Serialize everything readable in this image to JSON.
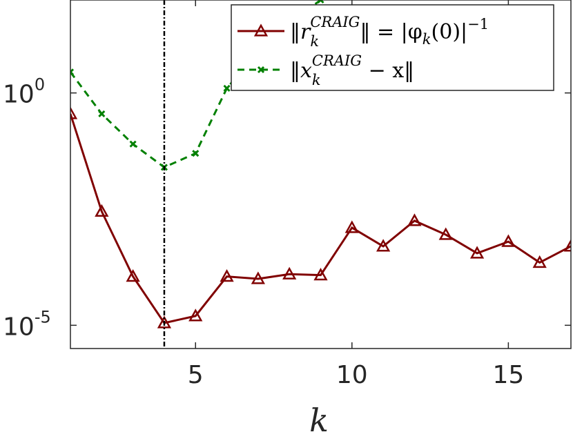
{
  "chart_data": {
    "type": "line",
    "xlabel": "k",
    "ylabel": "",
    "xlim": [
      1,
      17
    ],
    "ylim_log10": [
      -5.5,
      2
    ],
    "y_scale": "log",
    "x_ticks": [
      5,
      10,
      15
    ],
    "y_ticks": [
      {
        "base": "10",
        "exp": "0",
        "log10": 0
      },
      {
        "base": "10",
        "exp": "-5",
        "log10": -5
      }
    ],
    "vertical_line": {
      "x": 4,
      "style": "dash-dot",
      "color": "#000000"
    },
    "legend_position": "top-right",
    "series": [
      {
        "name": "‖r_k^CRAIG‖ = |φ_k(0)|⁻¹",
        "legend_parts": {
          "main": "‖r",
          "sub": "k",
          "sup": "CRAIG",
          "rest": "‖ = |φ",
          "sub2": "k",
          "rest2": "(0)|",
          "sup2": "−1"
        },
        "color": "#800000",
        "marker": "triangle",
        "line_style": "solid",
        "x": [
          1,
          2,
          3,
          4,
          5,
          6,
          7,
          8,
          9,
          10,
          11,
          12,
          13,
          14,
          15,
          16,
          17
        ],
        "log10_y": [
          -0.45,
          -2.55,
          -3.95,
          -4.95,
          -4.8,
          -3.95,
          -4.0,
          -3.9,
          -3.92,
          -2.9,
          -3.3,
          -2.75,
          -3.05,
          -3.45,
          -3.2,
          -3.65,
          -3.3
        ]
      },
      {
        "name": "‖x_k^CRAIG − x‖",
        "legend_parts": {
          "main": "‖x",
          "sub": "k",
          "sup": "CRAIG",
          "rest": " − x‖"
        },
        "color": "#008000",
        "marker": "x",
        "line_style": "dashed",
        "x": [
          1,
          2,
          3,
          4,
          5,
          6,
          7,
          8,
          9
        ],
        "log10_y": [
          0.45,
          -0.45,
          -1.1,
          -1.6,
          -1.3,
          0.1,
          0.9,
          1.5,
          2.0
        ]
      }
    ]
  }
}
